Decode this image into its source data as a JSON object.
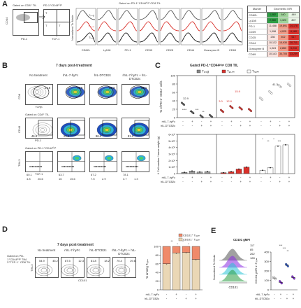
{
  "panels": {
    "A": {
      "label": "A",
      "gate1": "Gated on CD8⁺ TIL",
      "gate2": "PD-1⁺CD44ʰⁱᵍʰ",
      "gate_title": "Gated on PD-1⁺CD44ʰⁱᵍʰ CD8 TIL",
      "hist_ylabel": "Normalized To Mode",
      "hist_markers": [
        "CD62L",
        "Ly108",
        "PD-1",
        "CD39",
        "CD25",
        "CD44",
        "Granzyme B",
        "CD69"
      ],
      "subset_labels": [
        "Tₚᵣₒg",
        "Tₑₓ.ᵢₙₜ",
        "Tₜₑᵣₘ"
      ],
      "heat": {
        "header_marker": "Marker",
        "header_mfi": "Geometric MFI",
        "cols": [
          "Tprog",
          "Tex.int",
          "Tterm"
        ],
        "rows": [
          {
            "m": "CD62L",
            "v": [
              "1,082",
              "640",
              "449"
            ]
          },
          {
            "m": "Ly108",
            "v": [
              "2,960",
              "1,320",
              "807"
            ]
          },
          {
            "m": "PD-1",
            "v": [
              "11,488",
              "19,891",
              "24,178"
            ]
          },
          {
            "m": "CD39",
            "v": [
              "1,098",
              "4,025",
              "6,180"
            ]
          },
          {
            "m": "CD25",
            "v": [
              "236",
              "402",
              "617"
            ]
          },
          {
            "m": "CD44",
            "v": [
              "10,122",
              "15,930",
              "20,711"
            ]
          },
          {
            "m": "Granzyme B",
            "v": [
              "1,024",
              "2,850",
              "5,210"
            ]
          },
          {
            "m": "CD69",
            "v": [
              "10,143",
              "34,705",
              "33,259"
            ]
          }
        ]
      }
    },
    "B": {
      "label": "B",
      "title": "7 days post-treatment",
      "cols": [
        "No treatment",
        "rhIL-7-hyFc",
        "hIL-DTCB2c",
        "rhIL-7-hyFc + hIL-DTCB2c"
      ],
      "row1_gate": "",
      "row1_axes": [
        "CD8",
        "TCRβ"
      ],
      "row1_vals": [
        "21.6",
        "79.6",
        "83.3",
        "83.1"
      ],
      "row2_gate": "Gated on CD8⁺ TIL",
      "row2_axes": [
        "CD44",
        "PD-1"
      ],
      "row2_vals": [
        "46.6",
        "23.9",
        "86.0",
        "81.0"
      ],
      "row3_gate": "Gated on PD-1⁺CD44ʰⁱᵍʰ",
      "row3_axes": [
        "TIM-3",
        "TCF-1"
      ],
      "row3_vals": [
        [
          "60.1",
          "4.8",
          "26.6"
        ],
        [
          "63.7",
          "16",
          "15.6"
        ],
        [
          "67.2",
          "7.5",
          "2.9"
        ],
        [
          "78.1",
          "3.7",
          "1.3"
        ]
      ]
    },
    "C": {
      "label": "C",
      "title": "Gated PD-1⁺CD44ʰⁱᵍʰ CD8 TIL",
      "legend": [
        "Tₚᵣₒg",
        "Tₑₓ.ᵢₙₜ",
        "Tₜₑᵣₘ"
      ],
      "top_ylabel": "% of PD-1⁺ CD44⁺ cells",
      "top_yticks": [
        "100",
        "80",
        "60",
        "40",
        "20",
        "0"
      ],
      "top_vals": [
        "41.3",
        "32.9",
        "3.0",
        "12.8",
        "15.9"
      ],
      "bottom_ylabel": "# Cell number / tumor weight (g)",
      "bottom_yticks": [
        "6×10⁶",
        "5×10⁶",
        "4×10⁶",
        "3×10⁶",
        "2×10⁶",
        "1×10⁶",
        "0"
      ],
      "row_labels": [
        "rhIL-7-hyFc",
        "hIL-DTCB2c"
      ],
      "signs_r1": [
        "-",
        "+",
        "-",
        "+",
        "-",
        "+",
        "-",
        "+",
        "-",
        "+",
        "-",
        "+"
      ],
      "signs_r2": [
        "-",
        "-",
        "+",
        "+",
        "-",
        "-",
        "+",
        "+",
        "-",
        "-",
        "+",
        "+"
      ],
      "sig": [
        "****",
        "**",
        "***",
        "**",
        "*",
        "**",
        "*",
        "***"
      ]
    },
    "D": {
      "label": "D",
      "title": "7 days post-treatment",
      "cols": [
        "No treatment",
        "rhIL-7-hyFc",
        "hIL-DTCB2c",
        "rhIL-7-hyFc + hIL-DTCB2c"
      ],
      "gate": "Gated on PD-1⁺CD44ʰⁱᵍʰ TIM-3⁺TCF-1⁻ CD8 TIL",
      "axes": [
        "TIM-3",
        "CD101"
      ],
      "quad_vals": [
        [
          "54.9",
          "45.2"
        ],
        [
          "87.5",
          "12.3"
        ],
        [
          "81.8",
          "18.2"
        ],
        [
          "70.4",
          "29.6"
        ]
      ],
      "legend": [
        "CD101⁺ Tₜₑᵣₘ",
        "CD101⁻ Tₜₑᵣₘ"
      ],
      "ylabel": "% among Tₜₑᵣₘ",
      "yticks": [
        "100",
        "80",
        "60",
        "40",
        "20",
        "0"
      ],
      "row_labels": [
        "rhIL-7-hyFc",
        "hIL-DTCB2c"
      ],
      "signs_r1": [
        "-",
        "+",
        "-",
        "+"
      ],
      "signs_r2": [
        "-",
        "-",
        "+",
        "+"
      ],
      "sig": [
        "**",
        "*",
        "*",
        "*"
      ]
    },
    "E": {
      "label": "E",
      "legend_title": "CD101 gMFI",
      "mfi_vals": [
        "117",
        "85",
        "262",
        "128"
      ],
      "hist_ylabel": "Normalized To Mode",
      "hist_xlabel": "CD101",
      "ylabel": "CD101 gMFI in Tₜₑᵣₘ",
      "yticks": [
        "400",
        "300",
        "200",
        "100",
        "0"
      ],
      "row_labels": [
        "rhIL-7-hyFc",
        "hIL-DTCB2c"
      ],
      "signs_r1": [
        "-",
        "+",
        "-",
        "+"
      ],
      "signs_r2": [
        "-",
        "-",
        "+",
        "+"
      ],
      "sig": [
        "***",
        "***",
        "**"
      ]
    }
  },
  "chart_data": [
    {
      "type": "scatter",
      "panel": "C-top",
      "ylabel": "% of PD-1⁺ CD44⁺ cells",
      "ylim": [
        0,
        100
      ],
      "categories": [
        "-/-",
        "+/-",
        "-/+",
        "+/+"
      ],
      "series": [
        {
          "name": "Tprog",
          "values": [
            32.9,
            12.8,
            3.0,
            4.0
          ]
        },
        {
          "name": "Tex.int",
          "values": [
            15.9,
            25.0,
            22.0,
            18.0
          ]
        },
        {
          "name": "Tterm",
          "values": [
            45.0,
            60.0,
            75.0,
            78.0
          ]
        }
      ]
    },
    {
      "type": "bar",
      "panel": "C-bottom",
      "ylabel": "# Cell number / tumor weight (g)",
      "ylim": [
        0,
        6000000
      ],
      "categories": [
        "-/-",
        "+/-",
        "-/+",
        "+/+"
      ],
      "series": [
        {
          "name": "Tprog",
          "values": [
            200000,
            400000,
            250000,
            300000
          ]
        },
        {
          "name": "Tex.int",
          "values": [
            150000,
            300000,
            700000,
            1000000
          ]
        },
        {
          "name": "Tterm",
          "values": [
            500000,
            900000,
            4200000,
            4400000
          ]
        }
      ]
    },
    {
      "type": "bar",
      "panel": "D",
      "ylabel": "% among Tterm",
      "ylim": [
        0,
        100
      ],
      "categories": [
        "-/-",
        "+/-",
        "-/+",
        "+/+"
      ],
      "series": [
        {
          "name": "CD101+ Tterm",
          "values": [
            40,
            15,
            14,
            30
          ]
        },
        {
          "name": "CD101- Tterm",
          "values": [
            60,
            85,
            86,
            70
          ]
        }
      ]
    },
    {
      "type": "scatter",
      "panel": "E",
      "ylabel": "CD101 gMFI in Tterm",
      "ylim": [
        0,
        400
      ],
      "categories": [
        "-/-",
        "+/-",
        "-/+",
        "+/+"
      ],
      "values": [
        125,
        80,
        260,
        130
      ]
    }
  ],
  "colors": {
    "gray": "#555555",
    "red": "#d9302a",
    "black": "#111111",
    "green": "#2e9e44",
    "blue": "#2b5bd6",
    "purple": "#8a2be2",
    "cyan": "#2ac4d6",
    "tan": "#ead7b5",
    "salmon": "#f08a6a"
  }
}
